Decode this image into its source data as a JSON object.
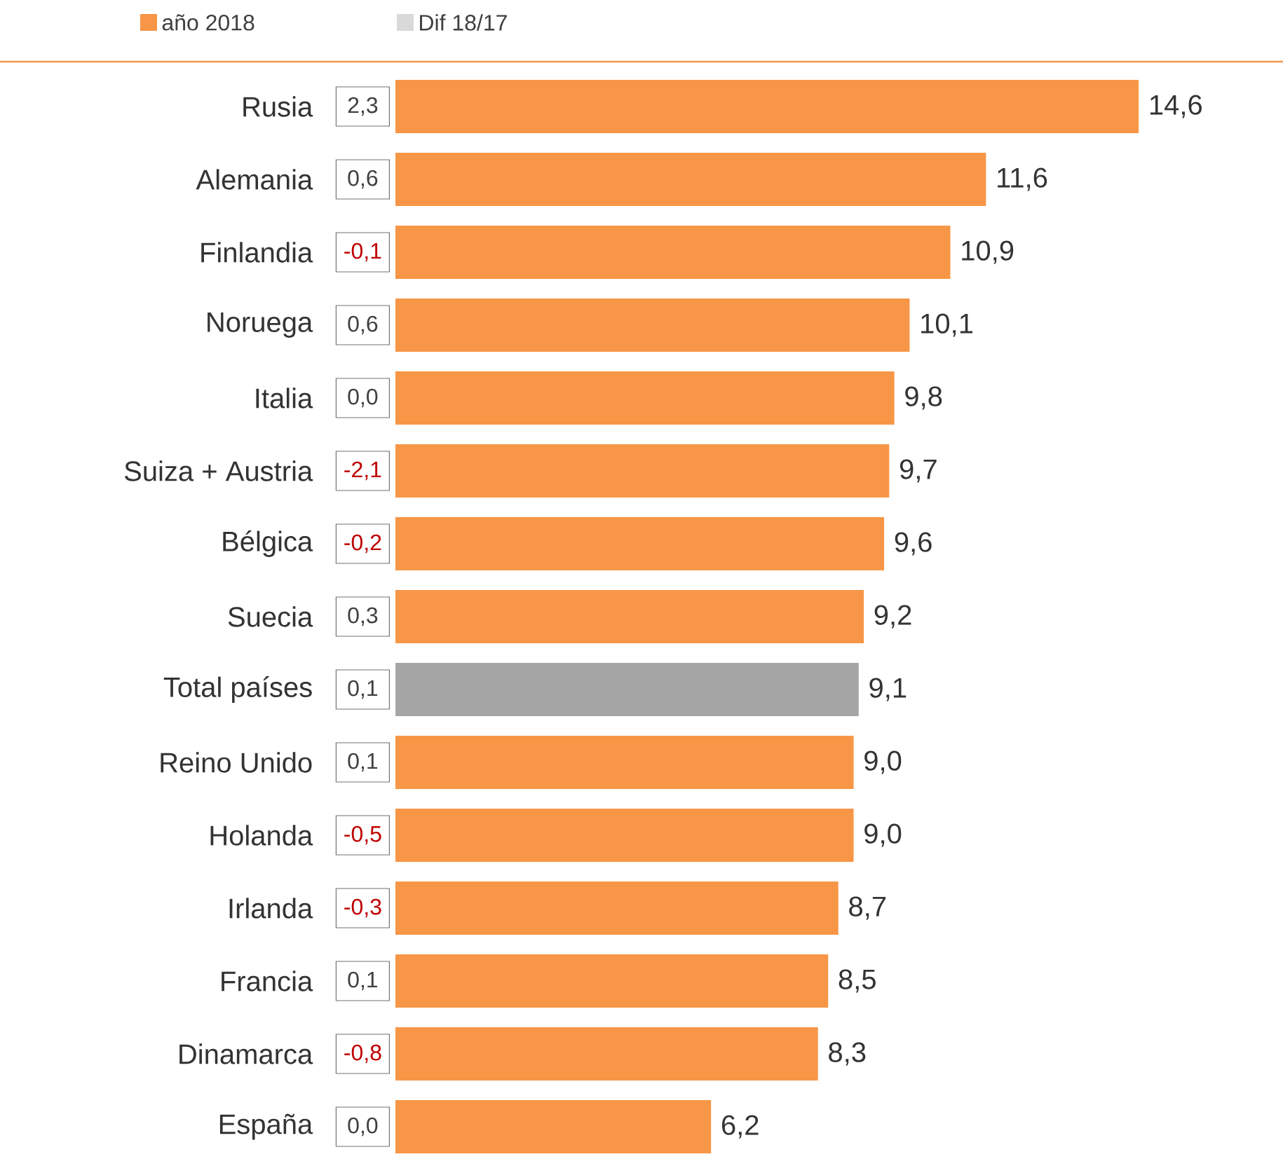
{
  "chart_data": {
    "type": "bar",
    "orientation": "horizontal",
    "legend": "top",
    "categories": [
      "Rusia",
      "Alemania",
      "Finlandia",
      "Noruega",
      "Italia",
      "Suiza + Austria",
      "Bélgica",
      "Suecia",
      "Total países",
      "Reino Unido",
      "Holanda",
      "Irlanda",
      "Francia",
      "Dinamarca",
      "España"
    ],
    "series": [
      {
        "name": "año 2018",
        "color": "#f79646",
        "colors": [
          "#f79646",
          "#f79646",
          "#f79646",
          "#f79646",
          "#f79646",
          "#f79646",
          "#f79646",
          "#f79646",
          "#a5a5a5",
          "#f79646",
          "#f79646",
          "#f79646",
          "#f79646",
          "#f79646",
          "#f79646"
        ],
        "values": [
          14.6,
          11.6,
          10.9,
          10.1,
          9.8,
          9.7,
          9.6,
          9.2,
          9.1,
          9.0,
          9.0,
          8.7,
          8.5,
          8.3,
          6.2
        ],
        "value_labels": [
          "14,6",
          "11,6",
          "10,9",
          "10,1",
          "9,8",
          "9,7",
          "9,6",
          "9,2",
          "9,1",
          "9,0",
          "9,0",
          "8,7",
          "8,5",
          "8,3",
          "6,2"
        ]
      },
      {
        "name": "Dif 18/17",
        "color": "#d9d9d9",
        "values": [
          null,
          null,
          null,
          null,
          null,
          null,
          null,
          null,
          null,
          null,
          null,
          null,
          null,
          null,
          null
        ]
      }
    ],
    "annotations": [
      "2,3",
      "0,6",
      "-0,1",
      "0,6",
      "0,0",
      "-2,1",
      "-0,2",
      "0,3",
      "0,1",
      "0,1",
      "-0,5",
      "-0,3",
      "0,1",
      "-0,8",
      "0,0"
    ]
  }
}
